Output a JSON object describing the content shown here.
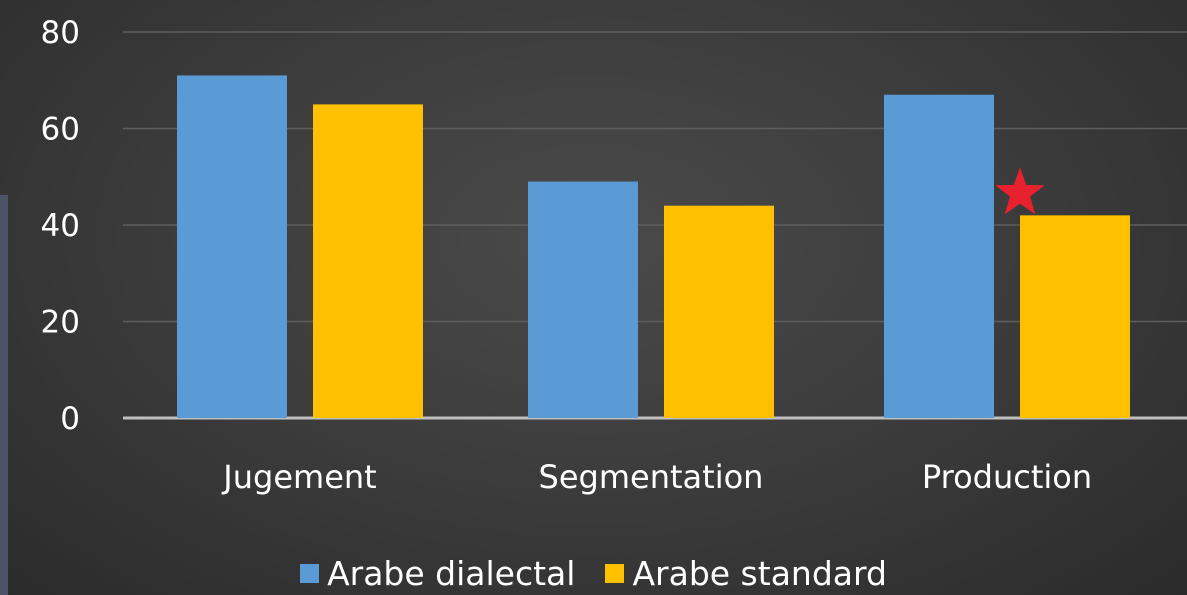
{
  "chart_data": {
    "type": "bar",
    "categories": [
      "Jugement",
      "Segmentation",
      "Production"
    ],
    "series": [
      {
        "name": "Arabe dialectal",
        "values": [
          71,
          49,
          67
        ],
        "color": "#5b9bd5"
      },
      {
        "name": "Arabe standard",
        "values": [
          65,
          44,
          42
        ],
        "color": "#ffc000"
      }
    ],
    "ylim": [
      0,
      80
    ],
    "yticks": [
      "0",
      "20",
      "40",
      "60",
      "80"
    ],
    "title": "",
    "xlabel": "",
    "ylabel": "",
    "grid": true,
    "legend_position": "bottom",
    "annotations": [
      {
        "type": "star",
        "category": "Production",
        "series": "Arabe standard",
        "color": "#e8212e"
      }
    ]
  }
}
